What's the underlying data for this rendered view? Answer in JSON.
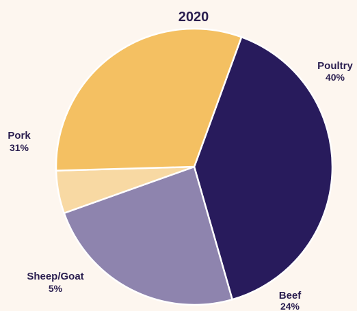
{
  "chart_data": {
    "type": "pie",
    "title": "2020",
    "slices": [
      {
        "label": "Poultry",
        "value": 40,
        "value_label": "40%",
        "color": "#281b5c"
      },
      {
        "label": "Beef",
        "value": 24,
        "value_label": "24%",
        "color": "#8e84ae"
      },
      {
        "label": "Sheep/Goat",
        "value": 5,
        "value_label": "5%",
        "color": "#f8d9a3"
      },
      {
        "label": "Pork",
        "value": 31,
        "value_label": "31%",
        "color": "#f4c062"
      }
    ]
  }
}
